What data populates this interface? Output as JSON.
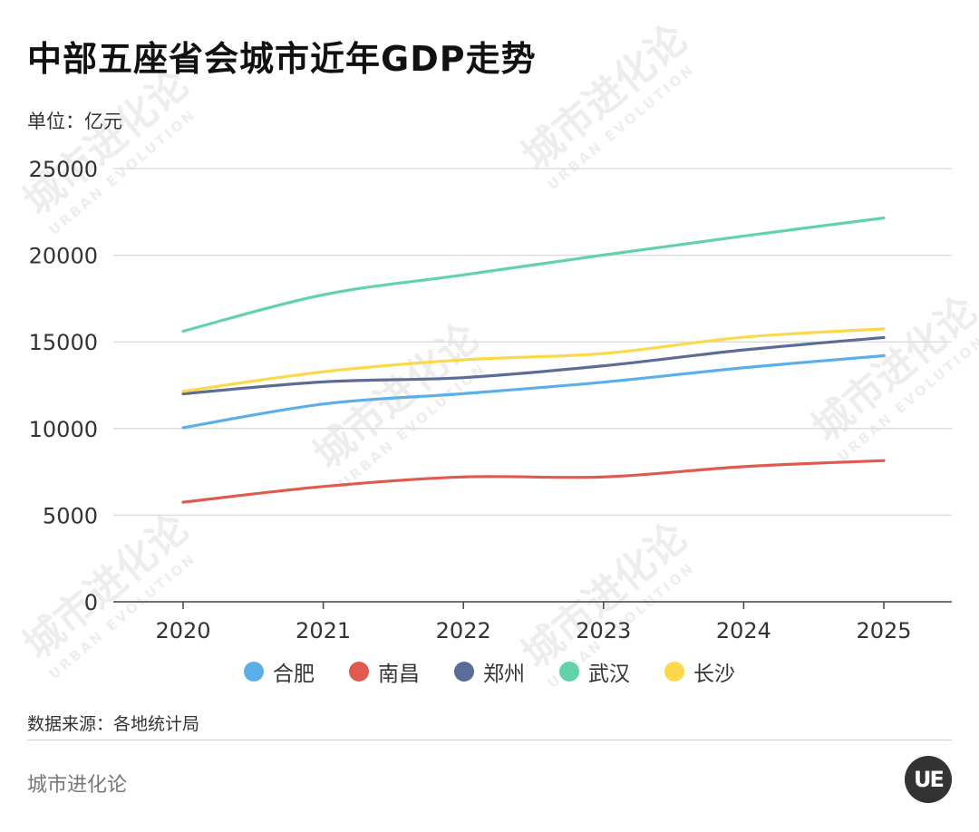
{
  "title": "中部五座省会城市近年GDP走势",
  "unit_label": "单位：亿元",
  "source": "数据来源：各地统计局",
  "footer_brand": "城市进化论",
  "logo_text": "UE",
  "watermark": {
    "cn": "城市进化论",
    "en": "URBAN EVOLUTION"
  },
  "chart_data": {
    "type": "line",
    "title": "中部五座省会城市近年GDP走势",
    "ylabel": "单位：亿元",
    "xlabel": "",
    "x": [
      "2020",
      "2021",
      "2022",
      "2023",
      "2024",
      "2025"
    ],
    "ylim": [
      0,
      25000
    ],
    "yticks": [
      0,
      5000,
      10000,
      15000,
      20000,
      25000
    ],
    "grid": true,
    "legend_position": "bottom",
    "series": [
      {
        "name": "合肥",
        "color": "#5aaee9",
        "values": [
          10046,
          11413,
          12013,
          12674,
          13508,
          14200
        ]
      },
      {
        "name": "南昌",
        "color": "#e05a4f",
        "values": [
          5746,
          6651,
          7204,
          7203,
          7800,
          8150
        ]
      },
      {
        "name": "郑州",
        "color": "#5b6d96",
        "values": [
          12003,
          12691,
          12935,
          13617,
          14532,
          15250
        ]
      },
      {
        "name": "武汉",
        "color": "#62d3a9",
        "values": [
          15616,
          17717,
          18866,
          20012,
          21106,
          22150
        ]
      },
      {
        "name": "长沙",
        "color": "#fbd94a",
        "values": [
          12143,
          13271,
          13966,
          14332,
          15269,
          15750
        ]
      }
    ]
  }
}
